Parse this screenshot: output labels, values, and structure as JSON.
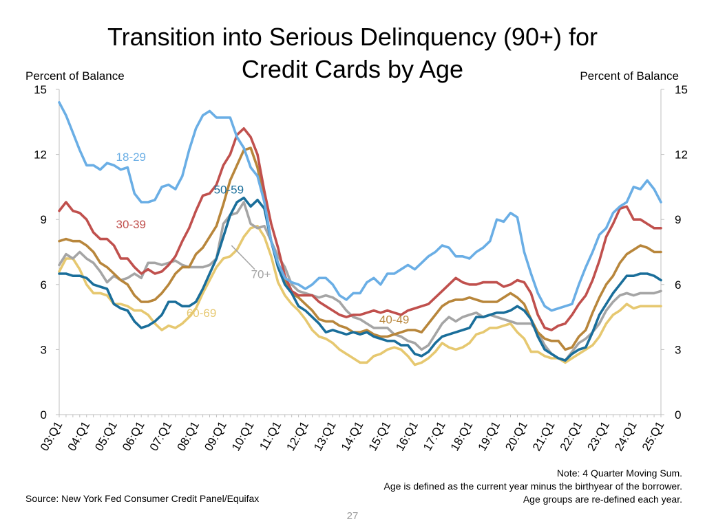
{
  "title_line1": "Transition into Serious Delinquency (90+) for",
  "title_line2": "Credit Cards by Age",
  "ylabel_left": "Percent of Balance",
  "ylabel_right": "Percent of Balance",
  "notes": [
    "Note: 4 Quarter Moving Sum.",
    "Age is defined as the current year minus the birthyear of the borrower.",
    "Age groups are re-defined each year."
  ],
  "source": "Source: New York Fed Consumer Credit Panel/Equifax",
  "page_number": "27",
  "chart_data": {
    "type": "line",
    "x_start": "03:Q1",
    "x_end": "25:Q2",
    "x_tick_labels": [
      "03:Q1",
      "04:Q1",
      "05:Q1",
      "06:Q1",
      "07:Q1",
      "08:Q1",
      "09:Q1",
      "10:Q1",
      "11:Q1",
      "12:Q1",
      "13:Q1",
      "14:Q1",
      "15:Q1",
      "16:Q1",
      "17:Q1",
      "18:Q1",
      "19:Q1",
      "20:Q1",
      "21:Q1",
      "22:Q1",
      "23:Q1",
      "24:Q1",
      "25:Q1"
    ],
    "ylim": [
      0,
      15
    ],
    "y_ticks": [
      0,
      3,
      6,
      9,
      12,
      15
    ],
    "grid": false,
    "series": [
      {
        "name": "18-29",
        "color": "#6aaee5",
        "values": [
          14.4,
          13.8,
          13.0,
          12.2,
          11.5,
          11.5,
          11.3,
          11.6,
          11.5,
          11.3,
          11.4,
          10.2,
          9.8,
          9.8,
          9.9,
          10.5,
          10.6,
          10.4,
          11.0,
          12.2,
          13.2,
          13.8,
          14.0,
          13.7,
          13.7,
          13.7,
          12.8,
          12.3,
          11.4,
          11.0,
          9.8,
          8.0,
          7.0,
          6.3,
          6.1,
          6.0,
          5.8,
          6.0,
          6.3,
          6.3,
          6.0,
          5.5,
          5.3,
          5.6,
          5.6,
          6.1,
          6.3,
          6.0,
          6.5,
          6.5,
          6.7,
          6.9,
          6.7,
          7.0,
          7.3,
          7.5,
          7.8,
          7.7,
          7.3,
          7.3,
          7.2,
          7.5,
          7.7,
          8.0,
          9.0,
          8.9,
          9.3,
          9.1,
          7.5,
          6.5,
          5.6,
          5.0,
          4.8,
          4.9,
          5.0,
          5.1,
          6.0,
          6.8,
          7.5,
          8.3,
          8.6,
          9.3,
          9.6,
          9.8,
          10.5,
          10.4,
          10.8,
          10.4,
          9.8
        ]
      },
      {
        "name": "30-39",
        "color": "#c0504d",
        "values": [
          9.4,
          9.8,
          9.4,
          9.3,
          9.0,
          8.4,
          8.1,
          8.1,
          7.8,
          7.2,
          7.2,
          6.8,
          6.5,
          6.7,
          6.5,
          6.6,
          6.9,
          7.3,
          8.0,
          8.6,
          9.4,
          10.1,
          10.2,
          10.6,
          11.5,
          12.0,
          12.9,
          13.2,
          12.8,
          12.0,
          10.3,
          8.8,
          7.7,
          6.4,
          5.7,
          5.5,
          5.5,
          5.5,
          5.2,
          5.0,
          4.8,
          4.6,
          4.5,
          4.6,
          4.6,
          4.7,
          4.8,
          4.7,
          4.8,
          4.7,
          4.6,
          4.8,
          4.9,
          5.0,
          5.1,
          5.4,
          5.7,
          6.0,
          6.3,
          6.1,
          6.0,
          6.0,
          6.1,
          6.1,
          6.1,
          5.9,
          6.0,
          6.2,
          6.1,
          5.6,
          4.6,
          4.0,
          3.9,
          4.1,
          4.2,
          4.6,
          5.1,
          5.5,
          6.2,
          7.1,
          8.2,
          8.8,
          9.5,
          9.6,
          9.0,
          9.0,
          8.8,
          8.6,
          8.6
        ]
      },
      {
        "name": "40-49",
        "color": "#b8863b",
        "values": [
          8.0,
          8.1,
          8.0,
          8.0,
          7.8,
          7.5,
          7.0,
          6.8,
          6.5,
          6.2,
          6.0,
          5.5,
          5.2,
          5.2,
          5.3,
          5.6,
          6.0,
          6.5,
          6.8,
          6.8,
          7.4,
          7.7,
          8.2,
          8.7,
          9.7,
          10.8,
          11.5,
          12.2,
          12.3,
          11.4,
          9.8,
          8.0,
          7.0,
          6.2,
          5.6,
          5.4,
          5.1,
          4.8,
          4.4,
          4.3,
          4.3,
          4.1,
          4.0,
          3.8,
          3.8,
          3.9,
          3.7,
          3.6,
          3.6,
          3.7,
          3.8,
          3.9,
          3.9,
          3.8,
          4.2,
          4.6,
          5.0,
          5.2,
          5.3,
          5.3,
          5.4,
          5.3,
          5.2,
          5.2,
          5.2,
          5.4,
          5.6,
          5.4,
          5.1,
          4.4,
          3.8,
          3.5,
          3.4,
          3.4,
          3.0,
          3.1,
          3.6,
          3.9,
          4.7,
          5.4,
          6.0,
          6.4,
          7.0,
          7.4,
          7.6,
          7.8,
          7.7,
          7.5,
          7.5
        ]
      },
      {
        "name": "50-59",
        "color": "#1a6e9a",
        "values": [
          6.5,
          6.5,
          6.4,
          6.4,
          6.3,
          6.0,
          5.9,
          5.8,
          5.1,
          4.9,
          4.8,
          4.3,
          4.0,
          4.1,
          4.3,
          4.6,
          5.2,
          5.2,
          5.0,
          5.0,
          5.2,
          5.8,
          6.5,
          7.2,
          8.2,
          9.2,
          9.8,
          10.0,
          9.6,
          9.9,
          9.5,
          8.0,
          6.8,
          6.0,
          5.6,
          5.0,
          4.8,
          4.5,
          4.2,
          3.8,
          3.9,
          3.8,
          3.7,
          3.8,
          3.7,
          3.8,
          3.6,
          3.5,
          3.4,
          3.4,
          3.2,
          3.2,
          2.8,
          2.7,
          2.9,
          3.3,
          3.6,
          3.7,
          3.8,
          3.9,
          4.0,
          4.5,
          4.5,
          4.6,
          4.7,
          4.7,
          4.8,
          5.0,
          4.8,
          4.4,
          3.6,
          3.0,
          2.8,
          2.6,
          2.5,
          2.8,
          3.0,
          3.1,
          3.8,
          4.6,
          5.1,
          5.6,
          6.0,
          6.4,
          6.4,
          6.5,
          6.5,
          6.4,
          6.2
        ]
      },
      {
        "name": "60-69",
        "color": "#e6c870",
        "values": [
          6.6,
          7.2,
          7.2,
          6.7,
          6.0,
          5.6,
          5.6,
          5.5,
          5.1,
          5.1,
          5.0,
          4.8,
          4.8,
          4.6,
          4.2,
          3.9,
          4.1,
          4.0,
          4.2,
          4.5,
          4.9,
          5.6,
          6.2,
          6.8,
          7.2,
          7.3,
          7.6,
          8.2,
          8.6,
          8.7,
          8.2,
          7.3,
          6.1,
          5.5,
          5.1,
          4.8,
          4.4,
          3.9,
          3.6,
          3.5,
          3.3,
          3.0,
          2.8,
          2.6,
          2.4,
          2.4,
          2.7,
          2.8,
          3.0,
          3.1,
          3.0,
          2.7,
          2.3,
          2.4,
          2.6,
          2.9,
          3.3,
          3.1,
          3.0,
          3.1,
          3.3,
          3.7,
          3.8,
          4.0,
          4.0,
          4.1,
          4.2,
          3.8,
          3.5,
          2.9,
          2.9,
          2.7,
          2.6,
          2.6,
          2.4,
          2.6,
          2.8,
          3.0,
          3.2,
          3.6,
          4.2,
          4.6,
          4.8,
          5.1,
          4.9,
          5.0,
          5.0,
          5.0,
          5.0
        ]
      },
      {
        "name": "70+",
        "color": "#a5a5a5",
        "values": [
          6.9,
          7.4,
          7.2,
          7.5,
          7.2,
          7.0,
          6.6,
          6.1,
          6.4,
          6.2,
          6.3,
          6.5,
          6.3,
          7.0,
          7.0,
          6.9,
          7.0,
          7.1,
          6.9,
          6.8,
          6.8,
          6.8,
          6.9,
          7.2,
          8.8,
          9.2,
          9.3,
          9.8,
          8.8,
          8.6,
          8.7,
          8.0,
          7.3,
          6.8,
          6.0,
          5.7,
          5.6,
          5.5,
          5.4,
          5.5,
          5.4,
          5.2,
          4.8,
          4.5,
          4.4,
          4.2,
          4.0,
          4.0,
          4.0,
          3.7,
          3.6,
          3.4,
          3.3,
          3.0,
          3.2,
          3.7,
          4.2,
          4.5,
          4.3,
          4.5,
          4.6,
          4.7,
          4.5,
          4.6,
          4.5,
          4.4,
          4.3,
          4.2,
          4.2,
          4.2,
          3.8,
          3.2,
          2.8,
          2.6,
          2.5,
          2.9,
          3.3,
          3.5,
          3.8,
          4.2,
          4.8,
          5.2,
          5.5,
          5.6,
          5.5,
          5.6,
          5.6,
          5.6,
          5.7
        ]
      }
    ],
    "annotations": [
      {
        "label": "18-29",
        "color": "#6aaee5",
        "anchor_x": 10.5,
        "anchor_y": 11.7
      },
      {
        "label": "30-39",
        "color": "#c0504d",
        "anchor_x": 10.5,
        "anchor_y": 8.6
      },
      {
        "label": "50-59",
        "color": "#1a6e9a",
        "anchor_x": 24.8,
        "anchor_y": 10.2
      },
      {
        "label": "70+",
        "color": "#a5a5a5",
        "anchor_x": 29.5,
        "anchor_y": 6.3
      },
      {
        "label": "60-69",
        "color": "#e6c870",
        "anchor_x": 20.8,
        "anchor_y": 4.5
      },
      {
        "label": "40-49",
        "color": "#b8863b",
        "anchor_x": 49.0,
        "anchor_y": 4.2
      }
    ]
  }
}
